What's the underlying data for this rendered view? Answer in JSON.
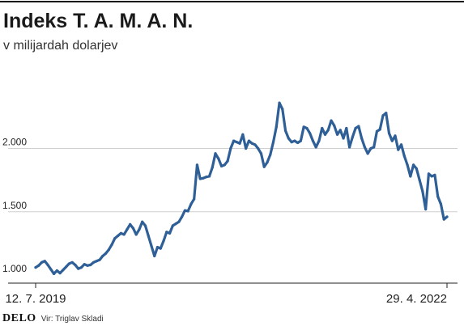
{
  "header": {
    "title": "Indeks T. A. M. A. N.",
    "subtitle": "v milijardah dolarjev"
  },
  "footer": {
    "brand": "DELO",
    "source": "Vir: Triglav Skladi"
  },
  "colors": {
    "line": "#2f5f97",
    "grid": "#cfcfcf",
    "axis": "#222222",
    "text": "#222222"
  },
  "chart_data": {
    "type": "line",
    "title": "Indeks T. A. M. A. N.",
    "subtitle": "v milijardah dolarjev",
    "xlabel": "",
    "ylabel": "",
    "x_start": "12. 7. 2019",
    "x_end": "29. 4. 2022",
    "x_tick_labels": [
      "12. 7. 2019",
      "29. 4. 2022"
    ],
    "y_ticks": [
      1000,
      1500,
      2000
    ],
    "y_tick_labels": [
      "1.000",
      "1.500",
      "2.000"
    ],
    "ylim": [
      1000,
      2540
    ],
    "grid": "horizontal",
    "legend": "none",
    "series": [
      {
        "values": [
          1060,
          1075,
          1100,
          1110,
          1080,
          1045,
          1010,
          1035,
          1015,
          1040,
          1065,
          1090,
          1100,
          1080,
          1050,
          1060,
          1085,
          1075,
          1080,
          1100,
          1110,
          1120,
          1150,
          1170,
          1200,
          1240,
          1290,
          1310,
          1330,
          1320,
          1360,
          1400,
          1370,
          1320,
          1360,
          1420,
          1390,
          1310,
          1230,
          1150,
          1220,
          1210,
          1270,
          1340,
          1330,
          1390,
          1405,
          1420,
          1460,
          1510,
          1505,
          1560,
          1600,
          1870,
          1760,
          1765,
          1775,
          1780,
          1850,
          1960,
          1920,
          1860,
          1870,
          1900,
          2000,
          2060,
          2050,
          2040,
          2110,
          2000,
          2060,
          2040,
          2030,
          2000,
          1960,
          1855,
          1890,
          1950,
          2050,
          2170,
          2360,
          2310,
          2140,
          2080,
          2050,
          2060,
          2045,
          2060,
          2170,
          2160,
          2120,
          2060,
          2010,
          2060,
          2160,
          2110,
          2145,
          2220,
          2180,
          2110,
          2145,
          2080,
          2160,
          2010,
          2090,
          2160,
          2175,
          2080,
          2010,
          1960,
          2000,
          2010,
          2135,
          2150,
          2260,
          2280,
          2120,
          2060,
          2100,
          1990,
          2030,
          1940,
          1870,
          1780,
          1870,
          1840,
          1750,
          1660,
          1520,
          1800,
          1780,
          1790,
          1620,
          1560,
          1440,
          1460
        ]
      }
    ]
  }
}
